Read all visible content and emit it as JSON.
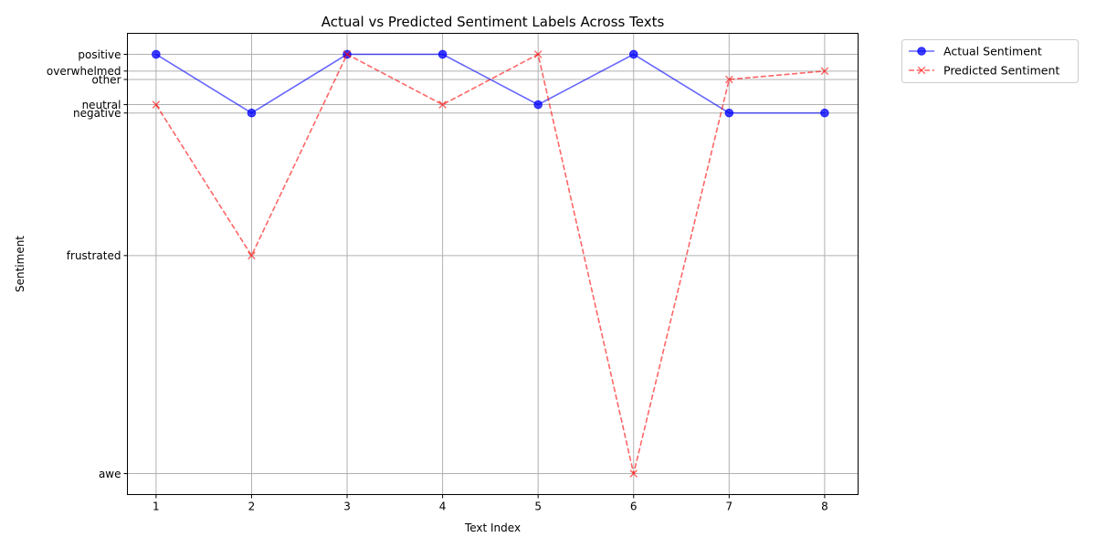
{
  "chart_data": {
    "type": "line",
    "title": "Actual vs Predicted Sentiment Labels Across Texts",
    "xlabel": "Text Index",
    "ylabel": "Sentiment",
    "x": [
      1,
      2,
      3,
      4,
      5,
      6,
      7,
      8
    ],
    "xlim": [
      0.7,
      8.35
    ],
    "ylim": [
      -0.5,
      10.5
    ],
    "y_ticks": [
      {
        "label": "awe",
        "value": 0
      },
      {
        "label": "frustrated",
        "value": 5.2
      },
      {
        "label": "negative",
        "value": 8.6
      },
      {
        "label": "neutral",
        "value": 8.8
      },
      {
        "label": "other",
        "value": 9.4
      },
      {
        "label": "overwhelmed",
        "value": 9.6
      },
      {
        "label": "positive",
        "value": 10
      }
    ],
    "series": [
      {
        "name": "Actual Sentiment",
        "labels": [
          "positive",
          "negative",
          "positive",
          "positive",
          "neutral",
          "positive",
          "negative",
          "negative"
        ],
        "color": "#0000ff",
        "line_style": "solid",
        "marker": "circle"
      },
      {
        "name": "Predicted Sentiment",
        "labels": [
          "neutral",
          "frustrated",
          "positive",
          "neutral",
          "positive",
          "awe",
          "other",
          "overwhelmed"
        ],
        "color": "#ff0000",
        "line_style": "dashed",
        "marker": "x"
      }
    ],
    "grid": true,
    "legend_position": "outside-top-right"
  }
}
